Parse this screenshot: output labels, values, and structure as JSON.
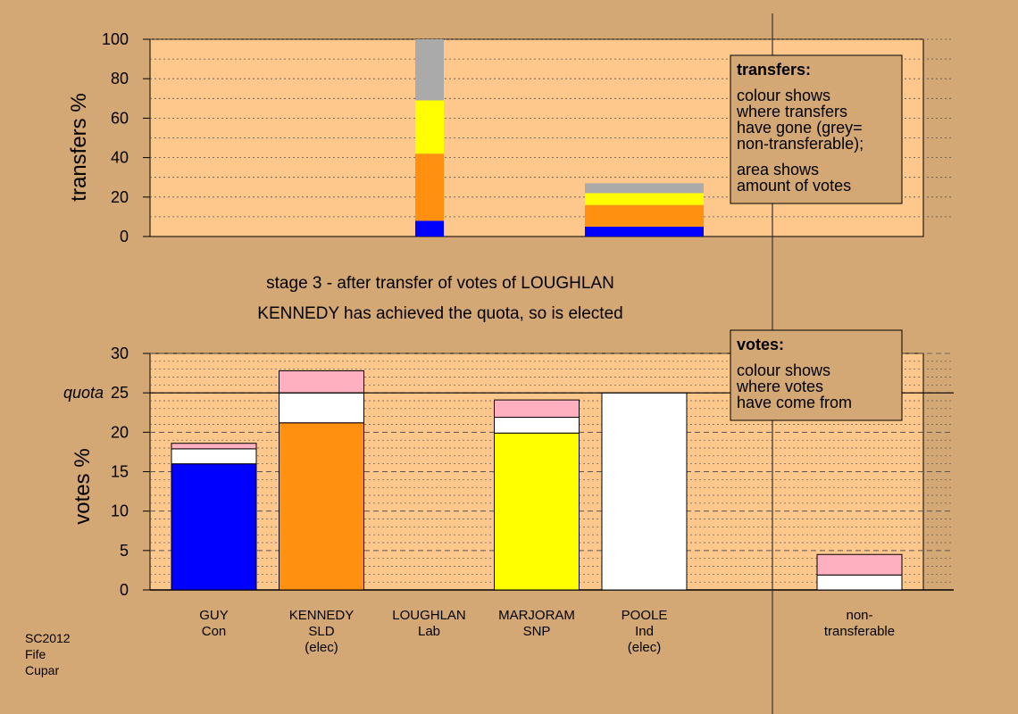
{
  "colors": {
    "background": "#d4a874",
    "plot_bg": "#fec78c",
    "blue": "#0000ff",
    "orange": "#ff9010",
    "yellow": "#ffff00",
    "grey": "#aaaaaa",
    "white": "#ffffff",
    "pink": "#ffb0c0"
  },
  "titles": {
    "stage": "stage 3 - after transfer of votes of LOUGHLAN",
    "result": "KENNEDY has achieved the quota, so is elected"
  },
  "credit": [
    "SC2012",
    "Fife",
    "Cupar"
  ],
  "candidates": [
    {
      "lines": [
        "GUY",
        "Con"
      ]
    },
    {
      "lines": [
        "KENNEDY",
        "SLD",
        "(elec)"
      ]
    },
    {
      "lines": [
        "LOUGHLAN",
        "Lab"
      ]
    },
    {
      "lines": [
        "MARJORAM",
        "SNP"
      ]
    },
    {
      "lines": [
        "POOLE",
        "Ind",
        "(elec)"
      ]
    },
    {
      "lines": [
        ""
      ]
    },
    {
      "lines": [
        "non-",
        "transferable"
      ]
    }
  ],
  "legends": {
    "transfers": {
      "title": "transfers:",
      "lines": [
        "colour shows",
        "where transfers",
        "have gone (grey=",
        "non-transferable);",
        "area shows",
        "amount of votes"
      ]
    },
    "votes": {
      "title": "votes:",
      "lines": [
        "colour shows",
        "where votes",
        "have come from"
      ]
    }
  },
  "chart_data": [
    {
      "type": "bar",
      "stacked": true,
      "ylabel": "transfers %",
      "ylim": [
        0,
        100
      ],
      "yticks": [
        0,
        20,
        40,
        60,
        80,
        100
      ],
      "bars": [
        {
          "category": "LOUGHLAN",
          "width_share": 1.0,
          "segments": [
            {
              "color": "blue",
              "value": 8
            },
            {
              "color": "orange",
              "value": 34
            },
            {
              "color": "yellow",
              "value": 27
            },
            {
              "color": "grey",
              "value": 31
            }
          ]
        },
        {
          "category": "POOLE",
          "width_share": 1.0,
          "segments": [
            {
              "color": "blue",
              "value": 5
            },
            {
              "color": "orange",
              "value": 11
            },
            {
              "color": "yellow",
              "value": 6
            },
            {
              "color": "grey",
              "value": 5
            }
          ]
        }
      ]
    },
    {
      "type": "bar",
      "stacked": true,
      "ylabel": "votes %",
      "ylim": [
        0,
        30
      ],
      "yticks": [
        0,
        5,
        10,
        15,
        20,
        25,
        30
      ],
      "quota": {
        "value": 25,
        "label": "quota"
      },
      "bars": [
        {
          "category": "GUY",
          "segments": [
            {
              "color": "blue",
              "value": 16.0
            },
            {
              "color": "white",
              "value": 1.9
            },
            {
              "color": "pink",
              "value": 0.7
            }
          ]
        },
        {
          "category": "KENNEDY",
          "segments": [
            {
              "color": "orange",
              "value": 21.2
            },
            {
              "color": "white",
              "value": 3.8
            },
            {
              "color": "pink",
              "value": 2.8
            }
          ]
        },
        {
          "category": "LOUGHLAN",
          "segments": []
        },
        {
          "category": "MARJORAM",
          "segments": [
            {
              "color": "yellow",
              "value": 19.9
            },
            {
              "color": "white",
              "value": 2.0
            },
            {
              "color": "pink",
              "value": 2.2
            }
          ]
        },
        {
          "category": "POOLE",
          "segments": [
            {
              "color": "white",
              "value": 25.0
            }
          ]
        },
        {
          "category": "",
          "segments": []
        },
        {
          "category": "non-transferable",
          "segments": [
            {
              "color": "white",
              "value": 1.9
            },
            {
              "color": "pink",
              "value": 2.6
            }
          ]
        }
      ]
    }
  ]
}
